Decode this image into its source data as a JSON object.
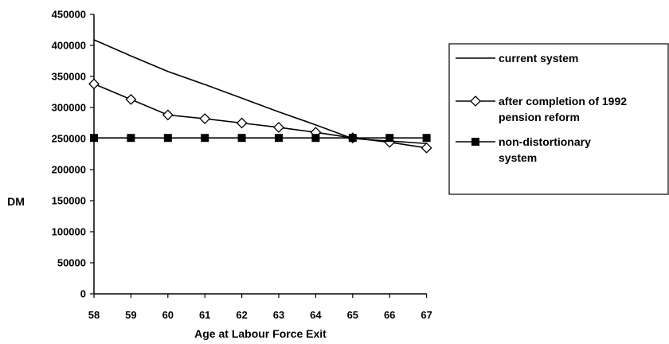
{
  "chart_data": {
    "type": "line",
    "xlabel": "Age at Labour Force Exit",
    "ylabel": "DM",
    "x": [
      58,
      59,
      60,
      61,
      62,
      63,
      64,
      65,
      66,
      67
    ],
    "ylim": [
      0,
      450000
    ],
    "yticks": [
      0,
      50000,
      100000,
      150000,
      200000,
      250000,
      300000,
      350000,
      400000,
      450000
    ],
    "grid": false,
    "legend_position": "right",
    "series": [
      {
        "name": "current system",
        "marker": "none",
        "color": "#000000",
        "values": [
          409000,
          383000,
          358000,
          337000,
          315000,
          293000,
          272000,
          250000,
          246000,
          242000
        ]
      },
      {
        "name": "after completion of 1992 pension reform",
        "legend_lines": [
          "after completion of 1992",
          "pension reform"
        ],
        "marker": "diamond",
        "color": "#000000",
        "values": [
          338000,
          313000,
          288000,
          282000,
          275000,
          268000,
          260000,
          251000,
          244000,
          235000
        ]
      },
      {
        "name": "non-distortionary system",
        "legend_lines": [
          "non-distortionary",
          "system"
        ],
        "marker": "square",
        "color": "#000000",
        "values": [
          251000,
          251000,
          251000,
          251000,
          251000,
          251000,
          251000,
          251000,
          251000,
          251000
        ]
      }
    ]
  }
}
